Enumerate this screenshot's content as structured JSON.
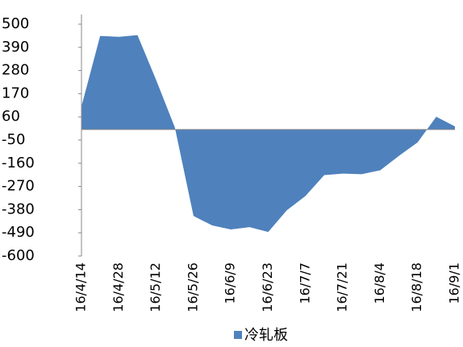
{
  "chart_data": {
    "type": "area",
    "categories": [
      "16/4/14",
      null,
      "16/4/28",
      null,
      "16/5/12",
      null,
      "16/5/26",
      null,
      "16/6/9",
      null,
      "16/6/23",
      null,
      "16/7/7",
      null,
      "16/7/21",
      null,
      "16/8/4",
      null,
      "16/8/18",
      null,
      "16/9/1"
    ],
    "series": [
      {
        "name": "冷轧板",
        "color": "#4f81bd",
        "values": [
          110,
          444,
          440,
          448,
          235,
          10,
          -410,
          -455,
          -474,
          -463,
          -486,
          -383,
          -315,
          -216,
          -209,
          -212,
          -193,
          -125,
          -61,
          61,
          15
        ]
      }
    ],
    "ylim": [
      -600,
      500
    ],
    "yticks": [
      500,
      390,
      280,
      170,
      60,
      -50,
      -160,
      -270,
      -380,
      -490,
      -600
    ],
    "grid": false,
    "legend": "bottom"
  }
}
